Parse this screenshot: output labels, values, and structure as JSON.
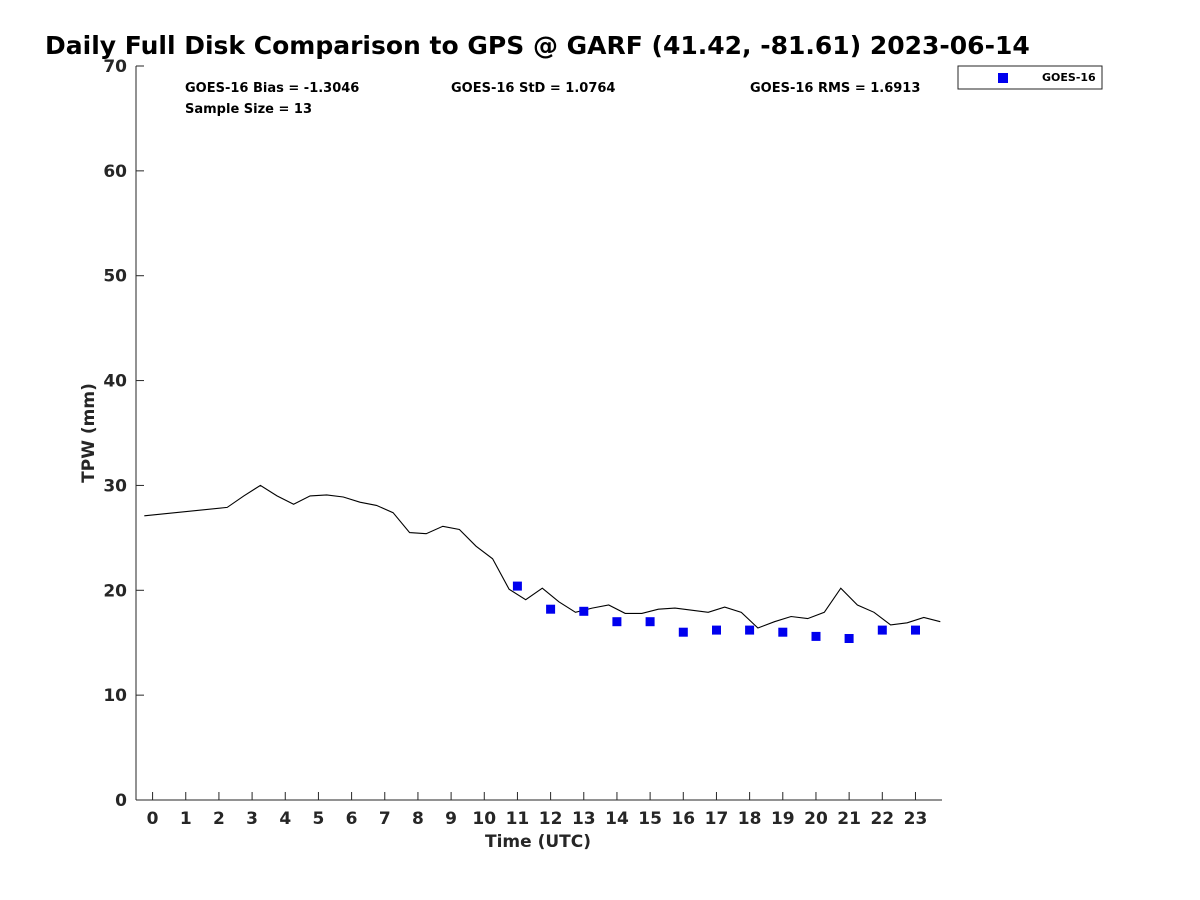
{
  "chart_data": {
    "type": "line",
    "title": "Daily Full Disk Comparison to GPS @ GARF (41.42, -81.61) 2023-06-14",
    "xlabel": "Time (UTC)",
    "ylabel": "TPW (mm)",
    "xlim": [
      -0.5,
      23.8
    ],
    "ylim": [
      0,
      70
    ],
    "x_ticks": [
      0,
      1,
      2,
      3,
      4,
      5,
      6,
      7,
      8,
      9,
      10,
      11,
      12,
      13,
      14,
      15,
      16,
      17,
      18,
      19,
      20,
      21,
      22,
      23
    ],
    "y_ticks": [
      0,
      10,
      20,
      30,
      40,
      50,
      60,
      70
    ],
    "grid": false,
    "legend_position": "top-right, outside",
    "stats": {
      "bias": "GOES-16 Bias = -1.3046",
      "std": "GOES-16 StD = 1.0764",
      "rms": "GOES-16 RMS = 1.6913",
      "sample": "Sample Size = 13"
    },
    "series": [
      {
        "style": "line",
        "color": "#000000",
        "x": [
          -0.25,
          2.25,
          2.75,
          3.25,
          3.75,
          4.25,
          4.75,
          5.25,
          5.75,
          6.25,
          6.75,
          7.25,
          7.75,
          8.25,
          8.75,
          9.25,
          9.75,
          10.25,
          10.75,
          11.25,
          11.75,
          12.25,
          12.75,
          13.25,
          13.75,
          14.25,
          14.75,
          15.25,
          15.75,
          16.25,
          16.75,
          17.25,
          17.75,
          18.25,
          18.75,
          19.25,
          19.75,
          20.25,
          20.75,
          21.25,
          21.75,
          22.25,
          22.75,
          23.25,
          23.75
        ],
        "y": [
          27.1,
          27.9,
          29.0,
          30.0,
          29.0,
          28.2,
          29.0,
          29.1,
          28.9,
          28.4,
          28.1,
          27.4,
          25.5,
          25.4,
          26.1,
          25.8,
          24.2,
          23.0,
          20.1,
          19.1,
          20.2,
          18.9,
          17.9,
          18.3,
          18.6,
          17.8,
          17.8,
          18.2,
          18.3,
          18.1,
          17.9,
          18.4,
          17.9,
          16.4,
          17.0,
          17.5,
          17.3,
          17.9,
          20.2,
          18.6,
          17.9,
          16.7,
          16.9,
          17.4,
          17.0
        ]
      },
      {
        "name": "GOES-16",
        "style": "marker",
        "marker": "square",
        "color": "#0000ee",
        "x": [
          11,
          12,
          13,
          14,
          15,
          16,
          17,
          18,
          19,
          20,
          21,
          22,
          23
        ],
        "y": [
          20.4,
          18.2,
          18.0,
          17.0,
          17.0,
          16.0,
          16.2,
          16.2,
          16.0,
          15.6,
          15.4,
          16.2,
          16.2
        ]
      }
    ]
  }
}
